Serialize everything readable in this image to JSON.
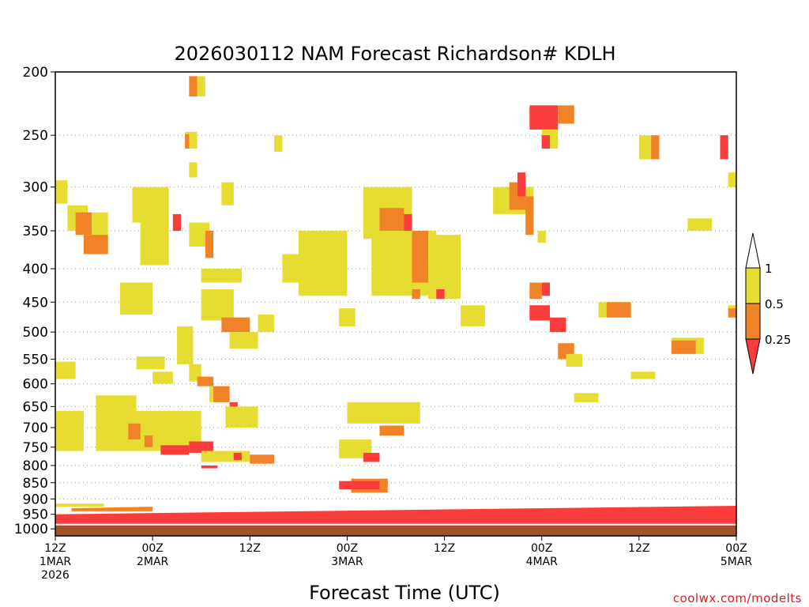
{
  "chart_data": {
    "type": "heatmap",
    "title": "2026030112 NAM Forecast Richardson# KDLH",
    "xlabel": "Forecast Time (UTC)",
    "ylabel": "Pressure (hPa)",
    "credit": "coolwx.com/modelts",
    "y_ticks": [
      "200",
      "250",
      "300",
      "350",
      "400",
      "450",
      "500",
      "550",
      "600",
      "650",
      "700",
      "750",
      "800",
      "850",
      "900",
      "950",
      "1000"
    ],
    "ylim": [
      1025,
      200
    ],
    "x_ticks": [
      {
        "hour": 0,
        "line1": "12Z",
        "line2": "1MAR",
        "line3": "2026"
      },
      {
        "hour": 12,
        "line1": "00Z",
        "line2": "2MAR",
        "line3": ""
      },
      {
        "hour": 24,
        "line1": "12Z",
        "line2": "",
        "line3": ""
      },
      {
        "hour": 36,
        "line1": "00Z",
        "line2": "3MAR",
        "line3": ""
      },
      {
        "hour": 48,
        "line1": "12Z",
        "line2": "",
        "line3": ""
      },
      {
        "hour": 60,
        "line1": "00Z",
        "line2": "4MAR",
        "line3": ""
      },
      {
        "hour": 72,
        "line1": "12Z",
        "line2": "",
        "line3": ""
      },
      {
        "hour": 84,
        "line1": "00Z",
        "line2": "5MAR",
        "line3": ""
      }
    ],
    "xlim": [
      0,
      84
    ],
    "legend": {
      "placement": "right",
      "levels": [
        {
          "label": "1",
          "value": 1.0
        },
        {
          "label": "0.5",
          "value": 0.5
        },
        {
          "label": "0.25",
          "value": 0.25
        }
      ],
      "classes": [
        {
          "name": "over",
          "range": "> 1",
          "color": "#ffffff"
        },
        {
          "name": "yellow",
          "range": "0.5 - 1",
          "color": "#e6dc32"
        },
        {
          "name": "orange",
          "range": "0.25 - 0.5",
          "color": "#f08228"
        },
        {
          "name": "red",
          "range": "< 0.25",
          "color": "#fa3c3c"
        }
      ]
    },
    "ground_color": "#a0522d",
    "surface_pressure": 985,
    "regions": [
      {
        "c": "y",
        "t0": 0,
        "t1": 1.5,
        "p0": 293,
        "p1": 318
      },
      {
        "c": "y",
        "t0": 1.5,
        "t1": 4,
        "p0": 320,
        "p1": 350
      },
      {
        "c": "o",
        "t0": 2.5,
        "t1": 4.5,
        "p0": 328,
        "p1": 355
      },
      {
        "c": "y",
        "t0": 4.5,
        "t1": 6.5,
        "p0": 328,
        "p1": 375
      },
      {
        "c": "o",
        "t0": 3.5,
        "t1": 6.5,
        "p0": 355,
        "p1": 380
      },
      {
        "c": "y",
        "t0": 9.5,
        "t1": 14,
        "p0": 300,
        "p1": 340
      },
      {
        "c": "y",
        "t0": 10.5,
        "t1": 14,
        "p0": 340,
        "p1": 395
      },
      {
        "c": "r",
        "t0": 14.5,
        "t1": 15.5,
        "p0": 330,
        "p1": 350
      },
      {
        "c": "y",
        "t0": 16.5,
        "t1": 19,
        "p0": 340,
        "p1": 370
      },
      {
        "c": "o",
        "t0": 18.5,
        "t1": 19.5,
        "p0": 350,
        "p1": 385
      },
      {
        "c": "o",
        "t0": 16.5,
        "t1": 17.5,
        "p0": 203,
        "p1": 218
      },
      {
        "c": "y",
        "t0": 17.5,
        "t1": 18.5,
        "p0": 203,
        "p1": 218
      },
      {
        "c": "y",
        "t0": 16,
        "t1": 17.5,
        "p0": 247,
        "p1": 262
      },
      {
        "c": "o",
        "t0": 16,
        "t1": 16.5,
        "p0": 249,
        "p1": 262
      },
      {
        "c": "y",
        "t0": 16.5,
        "t1": 17.5,
        "p0": 275,
        "p1": 290
      },
      {
        "c": "y",
        "t0": 20.5,
        "t1": 22,
        "p0": 295,
        "p1": 320
      },
      {
        "c": "y",
        "t0": 18,
        "t1": 23,
        "p0": 400,
        "p1": 420
      },
      {
        "c": "y",
        "t0": 18,
        "t1": 22,
        "p0": 430,
        "p1": 480
      },
      {
        "c": "o",
        "t0": 20.5,
        "t1": 24,
        "p0": 475,
        "p1": 500
      },
      {
        "c": "y",
        "t0": 15,
        "t1": 17,
        "p0": 490,
        "p1": 560
      },
      {
        "c": "y",
        "t0": 21.5,
        "t1": 25,
        "p0": 500,
        "p1": 530
      },
      {
        "c": "y",
        "t0": 0,
        "t1": 2.5,
        "p0": 555,
        "p1": 590
      },
      {
        "c": "y",
        "t0": 10,
        "t1": 13.5,
        "p0": 545,
        "p1": 570
      },
      {
        "c": "y",
        "t0": 12,
        "t1": 14.5,
        "p0": 575,
        "p1": 600
      },
      {
        "c": "y",
        "t0": 16.5,
        "t1": 18,
        "p0": 560,
        "p1": 595
      },
      {
        "c": "o",
        "t0": 17.5,
        "t1": 19.5,
        "p0": 585,
        "p1": 605
      },
      {
        "c": "y",
        "t0": 19,
        "t1": 21,
        "p0": 605,
        "p1": 640
      },
      {
        "c": "o",
        "t0": 19.5,
        "t1": 21.5,
        "p0": 605,
        "p1": 640
      },
      {
        "c": "r",
        "t0": 21.5,
        "t1": 22.5,
        "p0": 640,
        "p1": 660
      },
      {
        "c": "y",
        "t0": 21,
        "t1": 25,
        "p0": 650,
        "p1": 700
      },
      {
        "c": "y",
        "t0": 0,
        "t1": 3.5,
        "p0": 660,
        "p1": 760
      },
      {
        "c": "y",
        "t0": 5,
        "t1": 10,
        "p0": 625,
        "p1": 760
      },
      {
        "c": "y",
        "t0": 10,
        "t1": 18,
        "p0": 660,
        "p1": 760
      },
      {
        "c": "o",
        "t0": 9,
        "t1": 10.5,
        "p0": 690,
        "p1": 730
      },
      {
        "c": "o",
        "t0": 11,
        "t1": 12,
        "p0": 720,
        "p1": 750
      },
      {
        "c": "r",
        "t0": 13,
        "t1": 16.5,
        "p0": 745,
        "p1": 770
      },
      {
        "c": "r",
        "t0": 16.5,
        "t1": 19.5,
        "p0": 735,
        "p1": 765
      },
      {
        "c": "y",
        "t0": 18,
        "t1": 24,
        "p0": 760,
        "p1": 790
      },
      {
        "c": "o",
        "t0": 24,
        "t1": 27,
        "p0": 770,
        "p1": 795
      },
      {
        "c": "r",
        "t0": 22,
        "t1": 23,
        "p0": 765,
        "p1": 785
      },
      {
        "c": "r",
        "t0": 18,
        "t1": 20,
        "p0": 800,
        "p1": 808
      },
      {
        "c": "y",
        "t0": 36,
        "t1": 45,
        "p0": 640,
        "p1": 690
      },
      {
        "c": "y",
        "t0": 35,
        "t1": 39,
        "p0": 730,
        "p1": 780
      },
      {
        "c": "r",
        "t0": 38,
        "t1": 40,
        "p0": 765,
        "p1": 790
      },
      {
        "c": "o",
        "t0": 40,
        "t1": 43,
        "p0": 695,
        "p1": 720
      },
      {
        "c": "y",
        "t0": 30,
        "t1": 36,
        "p0": 350,
        "p1": 440
      },
      {
        "c": "y",
        "t0": 35,
        "t1": 37,
        "p0": 460,
        "p1": 490
      },
      {
        "c": "y",
        "t0": 38,
        "t1": 44,
        "p0": 300,
        "p1": 360
      },
      {
        "c": "o",
        "t0": 40,
        "t1": 43,
        "p0": 323,
        "p1": 355
      },
      {
        "c": "r",
        "t0": 43,
        "t1": 44,
        "p0": 330,
        "p1": 350
      },
      {
        "c": "y",
        "t0": 39,
        "t1": 47,
        "p0": 350,
        "p1": 440
      },
      {
        "c": "o",
        "t0": 44,
        "t1": 46,
        "p0": 350,
        "p1": 420
      },
      {
        "c": "r",
        "t0": 46,
        "t1": 47,
        "p0": 390,
        "p1": 420
      },
      {
        "c": "y",
        "t0": 46,
        "t1": 50,
        "p0": 355,
        "p1": 445
      },
      {
        "c": "o",
        "t0": 44,
        "t1": 45,
        "p0": 430,
        "p1": 445
      },
      {
        "c": "r",
        "t0": 47,
        "t1": 48,
        "p0": 430,
        "p1": 445
      },
      {
        "c": "y",
        "t0": 50,
        "t1": 53,
        "p0": 455,
        "p1": 490
      },
      {
        "c": "y",
        "t0": 27,
        "t1": 28,
        "p0": 250,
        "p1": 265
      },
      {
        "c": "y",
        "t0": 54,
        "t1": 59,
        "p0": 300,
        "p1": 330
      },
      {
        "c": "o",
        "t0": 56,
        "t1": 58,
        "p0": 295,
        "p1": 325
      },
      {
        "c": "r",
        "t0": 57,
        "t1": 58,
        "p0": 285,
        "p1": 310
      },
      {
        "c": "o",
        "t0": 58,
        "t1": 59,
        "p0": 310,
        "p1": 355
      },
      {
        "c": "y",
        "t0": 59.5,
        "t1": 60.5,
        "p0": 350,
        "p1": 365
      },
      {
        "c": "r",
        "t0": 58.5,
        "t1": 62,
        "p0": 225,
        "p1": 245
      },
      {
        "c": "o",
        "t0": 62,
        "t1": 64,
        "p0": 225,
        "p1": 240
      },
      {
        "c": "y",
        "t0": 60,
        "t1": 62,
        "p0": 245,
        "p1": 262
      },
      {
        "c": "r",
        "t0": 60,
        "t1": 61,
        "p0": 250,
        "p1": 262
      },
      {
        "c": "o",
        "t0": 58.5,
        "t1": 60,
        "p0": 420,
        "p1": 445
      },
      {
        "c": "r",
        "t0": 60,
        "t1": 61,
        "p0": 420,
        "p1": 440
      },
      {
        "c": "r",
        "t0": 58.5,
        "t1": 61,
        "p0": 455,
        "p1": 480
      },
      {
        "c": "r",
        "t0": 61,
        "t1": 63,
        "p0": 475,
        "p1": 500
      },
      {
        "c": "o",
        "t0": 62,
        "t1": 64,
        "p0": 520,
        "p1": 550
      },
      {
        "c": "y",
        "t0": 63,
        "t1": 65,
        "p0": 540,
        "p1": 565
      },
      {
        "c": "y",
        "t0": 64,
        "t1": 67,
        "p0": 620,
        "p1": 640
      },
      {
        "c": "y",
        "t0": 67,
        "t1": 71,
        "p0": 450,
        "p1": 475
      },
      {
        "c": "o",
        "t0": 68,
        "t1": 71,
        "p0": 450,
        "p1": 475
      },
      {
        "c": "y",
        "t0": 71,
        "t1": 74,
        "p0": 575,
        "p1": 590
      },
      {
        "c": "y",
        "t0": 76,
        "t1": 80,
        "p0": 510,
        "p1": 540
      },
      {
        "c": "o",
        "t0": 76,
        "t1": 79,
        "p0": 515,
        "p1": 540
      },
      {
        "c": "y",
        "t0": 72,
        "t1": 74,
        "p0": 250,
        "p1": 272
      },
      {
        "c": "o",
        "t0": 73.5,
        "t1": 74.5,
        "p0": 250,
        "p1": 272
      },
      {
        "c": "r",
        "t0": 82,
        "t1": 83,
        "p0": 250,
        "p1": 272
      },
      {
        "c": "y",
        "t0": 83,
        "t1": 84,
        "p0": 285,
        "p1": 300
      },
      {
        "c": "y",
        "t0": 78,
        "t1": 81,
        "p0": 335,
        "p1": 350
      },
      {
        "c": "y",
        "t0": 83,
        "t1": 84,
        "p0": 455,
        "p1": 475
      },
      {
        "c": "o",
        "t0": 83,
        "t1": 84,
        "p0": 460,
        "p1": 475
      },
      {
        "c": "y",
        "t0": 8,
        "t1": 12,
        "p0": 420,
        "p1": 470
      },
      {
        "c": "y",
        "t0": 28,
        "t1": 34,
        "p0": 380,
        "p1": 420
      },
      {
        "c": "y",
        "t0": 25,
        "t1": 27,
        "p0": 470,
        "p1": 500
      },
      {
        "c": "o",
        "t0": 36.5,
        "t1": 41,
        "p0": 838,
        "p1": 880
      },
      {
        "c": "r",
        "t0": 35,
        "t1": 40,
        "p0": 845,
        "p1": 870
      }
    ],
    "bands": [
      {
        "c": "r",
        "t0": 0,
        "t1": 84,
        "p_top_start": 950,
        "p_top_end": 922,
        "p_bottom": 985
      },
      {
        "c": "o",
        "t0": 2,
        "t1": 12,
        "p_top_start": 930,
        "p_top_end": 925,
        "p_bottom": 940
      },
      {
        "c": "y",
        "t0": 0,
        "t1": 6,
        "p_top_start": 915,
        "p_top_end": 915,
        "p_bottom": 925
      }
    ]
  }
}
